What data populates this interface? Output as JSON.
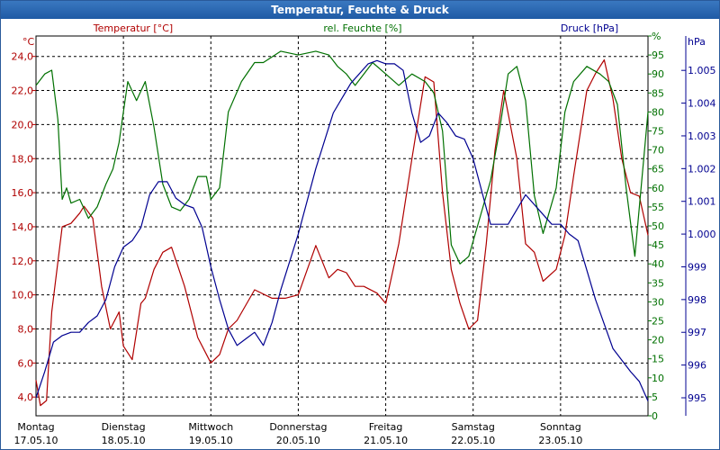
{
  "window": {
    "title": "Temperatur, Feuchte & Druck"
  },
  "colors": {
    "temp": "#b00000",
    "hum": "#007000",
    "press": "#000090",
    "grid": "#000000"
  },
  "chart_data": {
    "type": "line",
    "title": "Temperatur, Feuchte & Druck",
    "legend": {
      "temp": "Temperatur [°C]",
      "hum": "rel. Feuchte [%]",
      "press": "Druck [hPa]"
    },
    "units": {
      "temp": "°C",
      "hum": "%",
      "press": "hPa"
    },
    "x_ticks": [
      {
        "day": "Montag",
        "date": "17.05.10"
      },
      {
        "day": "Dienstag",
        "date": "18.05.10"
      },
      {
        "day": "Mittwoch",
        "date": "19.05.10"
      },
      {
        "day": "Donnerstag",
        "date": "20.05.10"
      },
      {
        "day": "Freitag",
        "date": "21.05.10"
      },
      {
        "day": "Samstag",
        "date": "22.05.10"
      },
      {
        "day": "Sonntag",
        "date": "23.05.10"
      }
    ],
    "x_range_days": [
      0,
      7
    ],
    "temp_axis": {
      "ylim": [
        2.9,
        25.2
      ],
      "ticks": [
        "4,0",
        "6,0",
        "8,0",
        "10,0",
        "12,0",
        "14,0",
        "16,0",
        "18,0",
        "20,0",
        "22,0",
        "24,0"
      ],
      "tick_values": [
        4,
        6,
        8,
        10,
        12,
        14,
        16,
        18,
        20,
        22,
        24
      ]
    },
    "hum_axis": {
      "ylim": [
        0,
        100
      ],
      "ticks": [
        "0",
        "5",
        "10",
        "15",
        "20",
        "25",
        "30",
        "35",
        "40",
        "45",
        "50",
        "55",
        "60",
        "65",
        "70",
        "75",
        "80",
        "85",
        "90",
        "95",
        "%"
      ],
      "tick_values": [
        0,
        5,
        10,
        15,
        20,
        25,
        30,
        35,
        40,
        45,
        50,
        55,
        60,
        65,
        70,
        75,
        80,
        85,
        90,
        95,
        100
      ]
    },
    "press_axis": {
      "ylim": [
        994.45,
        1006.05
      ],
      "ticks": [
        "995",
        "996",
        "997",
        "998",
        "999",
        "1.000",
        "1.001",
        "1.002",
        "1.003",
        "1.004",
        "1.005",
        "hPa"
      ],
      "tick_values": [
        995,
        996,
        997,
        998,
        999,
        1000,
        1001,
        1002,
        1003,
        1004,
        1005,
        1006
      ]
    },
    "series": [
      {
        "name": "Temperatur",
        "axis": "temp",
        "x": [
          0,
          0.05,
          0.12,
          0.18,
          0.3,
          0.4,
          0.5,
          0.55,
          0.65,
          0.75,
          0.85,
          0.95,
          1.0,
          1.1,
          1.2,
          1.25,
          1.35,
          1.45,
          1.55,
          1.7,
          1.85,
          2.0,
          2.1,
          2.2,
          2.3,
          2.5,
          2.7,
          2.85,
          3.0,
          3.2,
          3.35,
          3.45,
          3.55,
          3.65,
          3.75,
          3.9,
          4.0,
          4.15,
          4.3,
          4.45,
          4.55,
          4.65,
          4.75,
          4.85,
          4.95,
          5.05,
          5.15,
          5.25,
          5.35,
          5.5,
          5.6,
          5.7,
          5.8,
          5.95,
          6.05,
          6.15,
          6.3,
          6.4,
          6.5,
          6.6,
          6.7,
          6.8,
          6.9,
          7.0
        ],
        "values": [
          5.0,
          3.5,
          3.8,
          9.0,
          14.0,
          14.2,
          14.8,
          15.2,
          14.5,
          10.5,
          8.0,
          9.0,
          7.0,
          6.2,
          9.5,
          9.8,
          11.5,
          12.5,
          12.8,
          10.5,
          7.5,
          6.0,
          6.5,
          8.0,
          8.5,
          10.3,
          9.8,
          9.8,
          10.0,
          12.9,
          11.0,
          11.5,
          11.3,
          10.5,
          10.5,
          10.1,
          9.5,
          13.0,
          18.0,
          22.8,
          22.5,
          16.0,
          11.5,
          9.5,
          8.0,
          8.5,
          13.0,
          18.5,
          22.0,
          18.0,
          13.0,
          12.5,
          10.8,
          11.5,
          13.5,
          17.0,
          22.0,
          23.0,
          23.8,
          21.5,
          18.0,
          16.0,
          15.8,
          13.5
        ]
      },
      {
        "name": "rel. Feuchte",
        "axis": "hum",
        "x": [
          0,
          0.1,
          0.18,
          0.25,
          0.3,
          0.35,
          0.4,
          0.5,
          0.6,
          0.7,
          0.8,
          0.88,
          0.95,
          1.0,
          1.05,
          1.15,
          1.25,
          1.35,
          1.45,
          1.55,
          1.65,
          1.75,
          1.85,
          1.95,
          2.0,
          2.1,
          2.2,
          2.35,
          2.5,
          2.6,
          2.8,
          3.0,
          3.2,
          3.35,
          3.45,
          3.55,
          3.65,
          3.75,
          3.85,
          4.0,
          4.15,
          4.3,
          4.45,
          4.55,
          4.65,
          4.75,
          4.85,
          4.95,
          5.05,
          5.2,
          5.3,
          5.4,
          5.5,
          5.6,
          5.7,
          5.8,
          5.85,
          5.95,
          6.05,
          6.15,
          6.3,
          6.45,
          6.55,
          6.65,
          6.75,
          6.85,
          7.0
        ],
        "values": [
          87,
          90,
          91,
          78,
          57,
          60,
          56,
          57,
          52,
          55,
          61,
          65,
          72,
          80,
          88,
          83,
          88,
          76,
          61,
          55,
          54,
          57,
          63,
          63,
          57,
          60,
          80,
          88,
          93,
          93,
          96,
          95,
          96,
          95,
          92,
          90,
          87,
          90,
          93,
          90,
          87,
          90,
          88,
          85,
          75,
          45,
          40,
          42,
          50,
          62,
          75,
          90,
          92,
          83,
          58,
          48,
          52,
          60,
          80,
          88,
          92,
          90,
          88,
          82,
          60,
          42,
          80
        ]
      },
      {
        "name": "Druck",
        "axis": "press",
        "x": [
          0,
          0.1,
          0.2,
          0.3,
          0.4,
          0.5,
          0.6,
          0.7,
          0.8,
          0.9,
          1.0,
          1.1,
          1.2,
          1.3,
          1.4,
          1.5,
          1.6,
          1.7,
          1.8,
          1.9,
          2.0,
          2.1,
          2.2,
          2.3,
          2.4,
          2.5,
          2.6,
          2.7,
          2.8,
          3.0,
          3.2,
          3.4,
          3.6,
          3.8,
          3.9,
          4.0,
          4.1,
          4.2,
          4.3,
          4.4,
          4.5,
          4.6,
          4.7,
          4.8,
          4.9,
          5.0,
          5.2,
          5.4,
          5.6,
          5.8,
          5.9,
          6.0,
          6.1,
          6.2,
          6.3,
          6.4,
          6.6,
          6.8,
          6.9,
          7.0
        ],
        "values": [
          995.0,
          995.8,
          996.7,
          996.9,
          997.0,
          997.0,
          997.3,
          997.5,
          998.0,
          999.0,
          999.6,
          999.8,
          1000.2,
          1001.2,
          1001.6,
          1001.6,
          1001.1,
          1000.9,
          1000.8,
          1000.2,
          999.0,
          998.0,
          997.1,
          996.6,
          996.8,
          997.0,
          996.6,
          997.3,
          998.3,
          1000.0,
          1002.0,
          1003.7,
          1004.6,
          1005.2,
          1005.3,
          1005.2,
          1005.2,
          1005.0,
          1003.7,
          1002.8,
          1003.0,
          1003.7,
          1003.4,
          1003.0,
          1002.9,
          1002.3,
          1000.3,
          1000.3,
          1001.2,
          1000.6,
          1000.3,
          1000.3,
          1000.0,
          999.8,
          998.9,
          998.0,
          996.5,
          995.8,
          995.5,
          994.9
        ]
      }
    ]
  }
}
